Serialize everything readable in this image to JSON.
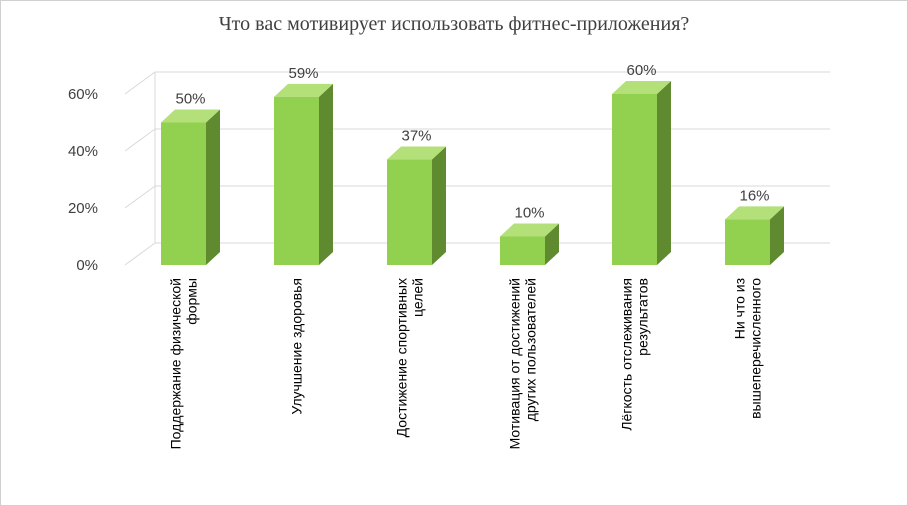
{
  "chart_data": {
    "type": "bar",
    "title": "Что вас мотивирует использовать фитнес-приложения?",
    "categories": [
      [
        "Поддержание физической",
        "формы"
      ],
      [
        "Улучшение здоровья"
      ],
      [
        "Достижение спортивных",
        "целей"
      ],
      [
        "Мотивация от достижений",
        "других пользователей"
      ],
      [
        "Лёгкость отслеживания",
        "результатов"
      ],
      [
        "Ни что из",
        "вышеперечисленного"
      ]
    ],
    "values": [
      50,
      59,
      37,
      10,
      60,
      16
    ],
    "data_labels": [
      "50%",
      "59%",
      "37%",
      "10%",
      "60%",
      "16%"
    ],
    "yticks": [
      "0%",
      "20%",
      "40%",
      "60%"
    ],
    "ylim": [
      0,
      60
    ],
    "grid": true,
    "legend": "none",
    "style": "3d-column",
    "colors": {
      "bar_front": "#92d050",
      "bar_side": "#5f8a2f",
      "bar_top": "#b4e07a",
      "grid": "#d9d9d9"
    }
  }
}
